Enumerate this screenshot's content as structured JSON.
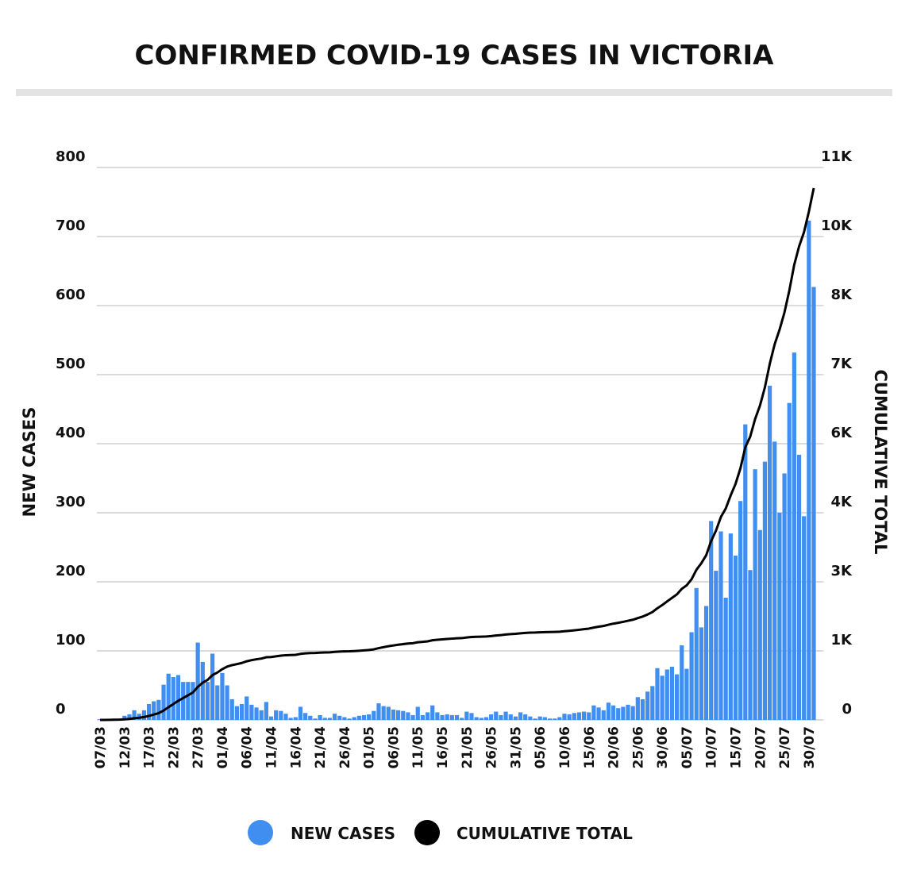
{
  "chart_data": {
    "type": "bar",
    "title": "CONFIRMED COVID-19 CASES IN VICTORIA",
    "y_label": "NEW CASES",
    "y2_label": "CUMULATIVE TOTAL",
    "categories": [
      "07/03",
      null,
      null,
      null,
      null,
      "12/03",
      null,
      null,
      null,
      null,
      "17/03",
      null,
      null,
      null,
      null,
      "22/03",
      null,
      null,
      null,
      null,
      "27/03",
      null,
      null,
      null,
      null,
      "01/04",
      null,
      null,
      null,
      null,
      "06/04",
      null,
      null,
      null,
      null,
      "11/04",
      null,
      null,
      null,
      null,
      "16/04",
      null,
      null,
      null,
      null,
      "21/04",
      null,
      null,
      null,
      null,
      "26/04",
      null,
      null,
      null,
      null,
      "01/05",
      null,
      null,
      null,
      null,
      "06/05",
      null,
      null,
      null,
      null,
      "11/05",
      null,
      null,
      null,
      null,
      "16/05",
      null,
      null,
      null,
      null,
      "21/05",
      null,
      null,
      null,
      null,
      "26/05",
      null,
      null,
      null,
      null,
      "31/05",
      null,
      null,
      null,
      null,
      "05/06",
      null,
      null,
      null,
      null,
      "10/06",
      null,
      null,
      null,
      null,
      "15/06",
      null,
      null,
      null,
      null,
      "20/06",
      null,
      null,
      null,
      null,
      "25/06",
      null,
      null,
      null,
      null,
      "30/06",
      null,
      null,
      null,
      null,
      "05/07",
      null,
      null,
      null,
      null,
      "10/07",
      null,
      null,
      null,
      null,
      "15/07",
      null,
      null,
      null,
      null,
      "20/07",
      null,
      null,
      null,
      null,
      "25/07",
      null,
      null,
      null,
      null,
      "30/07",
      null
    ],
    "series": [
      {
        "name": "NEW CASES",
        "color": "#3f8ef0",
        "type": "bar",
        "values": [
          1,
          0,
          1,
          2,
          2,
          6,
          8,
          14,
          9,
          14,
          23,
          27,
          29,
          51,
          67,
          62,
          65,
          55,
          55,
          55,
          112,
          84,
          55,
          96,
          50,
          68,
          50,
          30,
          20,
          23,
          34,
          22,
          18,
          14,
          26,
          5,
          14,
          13,
          9,
          3,
          4,
          19,
          10,
          6,
          2,
          7,
          3,
          3,
          9,
          6,
          4,
          2,
          4,
          6,
          7,
          8,
          13,
          24,
          20,
          19,
          15,
          14,
          13,
          11,
          7,
          19,
          7,
          11,
          21,
          11,
          7,
          8,
          7,
          7,
          3,
          12,
          10,
          4,
          3,
          4,
          8,
          12,
          7,
          12,
          8,
          5,
          11,
          8,
          5,
          2,
          5,
          4,
          2,
          2,
          4,
          9,
          8,
          10,
          11,
          12,
          11,
          21,
          18,
          14,
          25,
          21,
          17,
          19,
          22,
          20,
          33,
          30,
          41,
          49,
          75,
          64,
          73,
          77,
          66,
          108,
          74,
          127,
          191,
          134,
          165,
          288,
          216,
          273,
          177,
          270,
          238,
          317,
          428,
          217,
          363,
          275,
          374,
          484,
          403,
          300,
          357,
          459,
          532,
          384,
          295,
          723,
          627
        ]
      },
      {
        "name": "CUMULATIVE TOTAL",
        "color": "#000000",
        "type": "line",
        "axis": "y2",
        "values": [
          1,
          1,
          2,
          4,
          6,
          12,
          20,
          34,
          43,
          57,
          80,
          107,
          136,
          187,
          254,
          316,
          381,
          436,
          491,
          546,
          658,
          742,
          797,
          893,
          943,
          1011,
          1061,
          1091,
          1111,
          1134,
          1168,
          1190,
          1208,
          1222,
          1248,
          1253,
          1267,
          1280,
          1289,
          1292,
          1296,
          1315,
          1325,
          1331,
          1333,
          1340,
          1343,
          1346,
          1355,
          1361,
          1365,
          1367,
          1371,
          1377,
          1384,
          1392,
          1405,
          1429,
          1449,
          1468,
          1483,
          1497,
          1510,
          1521,
          1528,
          1547,
          1554,
          1565,
          1586,
          1597,
          1604,
          1612,
          1619,
          1626,
          1629,
          1641,
          1651,
          1655,
          1658,
          1662,
          1670,
          1682,
          1689,
          1701,
          1709,
          1714,
          1725,
          1733,
          1738,
          1740,
          1745,
          1749,
          1751,
          1753,
          1757,
          1766,
          1774,
          1784,
          1795,
          1807,
          1818,
          1839,
          1857,
          1871,
          1896,
          1917,
          1934,
          1953,
          1975,
          1995,
          2028,
          2058,
          2099,
          2148,
          2223,
          2287,
          2360,
          2430,
          2500,
          2610,
          2680,
          2800,
          2990,
          3120,
          3280,
          3560,
          3770,
          4040,
          4210,
          4470,
          4700,
          5010,
          5430,
          5640,
          5990,
          6260,
          6620,
          7090,
          7480,
          7770,
          8110,
          8550,
          9060,
          9430,
          9710,
          10120,
          10590
        ]
      }
    ],
    "ylim": [
      0,
      800
    ],
    "yticks": [
      0,
      100,
      200,
      300,
      400,
      500,
      600,
      700,
      800
    ],
    "y2lim": [
      0,
      11000
    ],
    "y2ticks": [
      {
        "value": 0,
        "label": "0"
      },
      {
        "value": 1375,
        "label": "1K"
      },
      {
        "value": 2750,
        "label": "3K"
      },
      {
        "value": 4125,
        "label": "4K"
      },
      {
        "value": 5500,
        "label": "6K"
      },
      {
        "value": 6875,
        "label": "7K"
      },
      {
        "value": 8250,
        "label": "8K"
      },
      {
        "value": 9625,
        "label": "10K"
      },
      {
        "value": 11000,
        "label": "11K"
      }
    ],
    "grid": true,
    "legend": "bottom"
  }
}
